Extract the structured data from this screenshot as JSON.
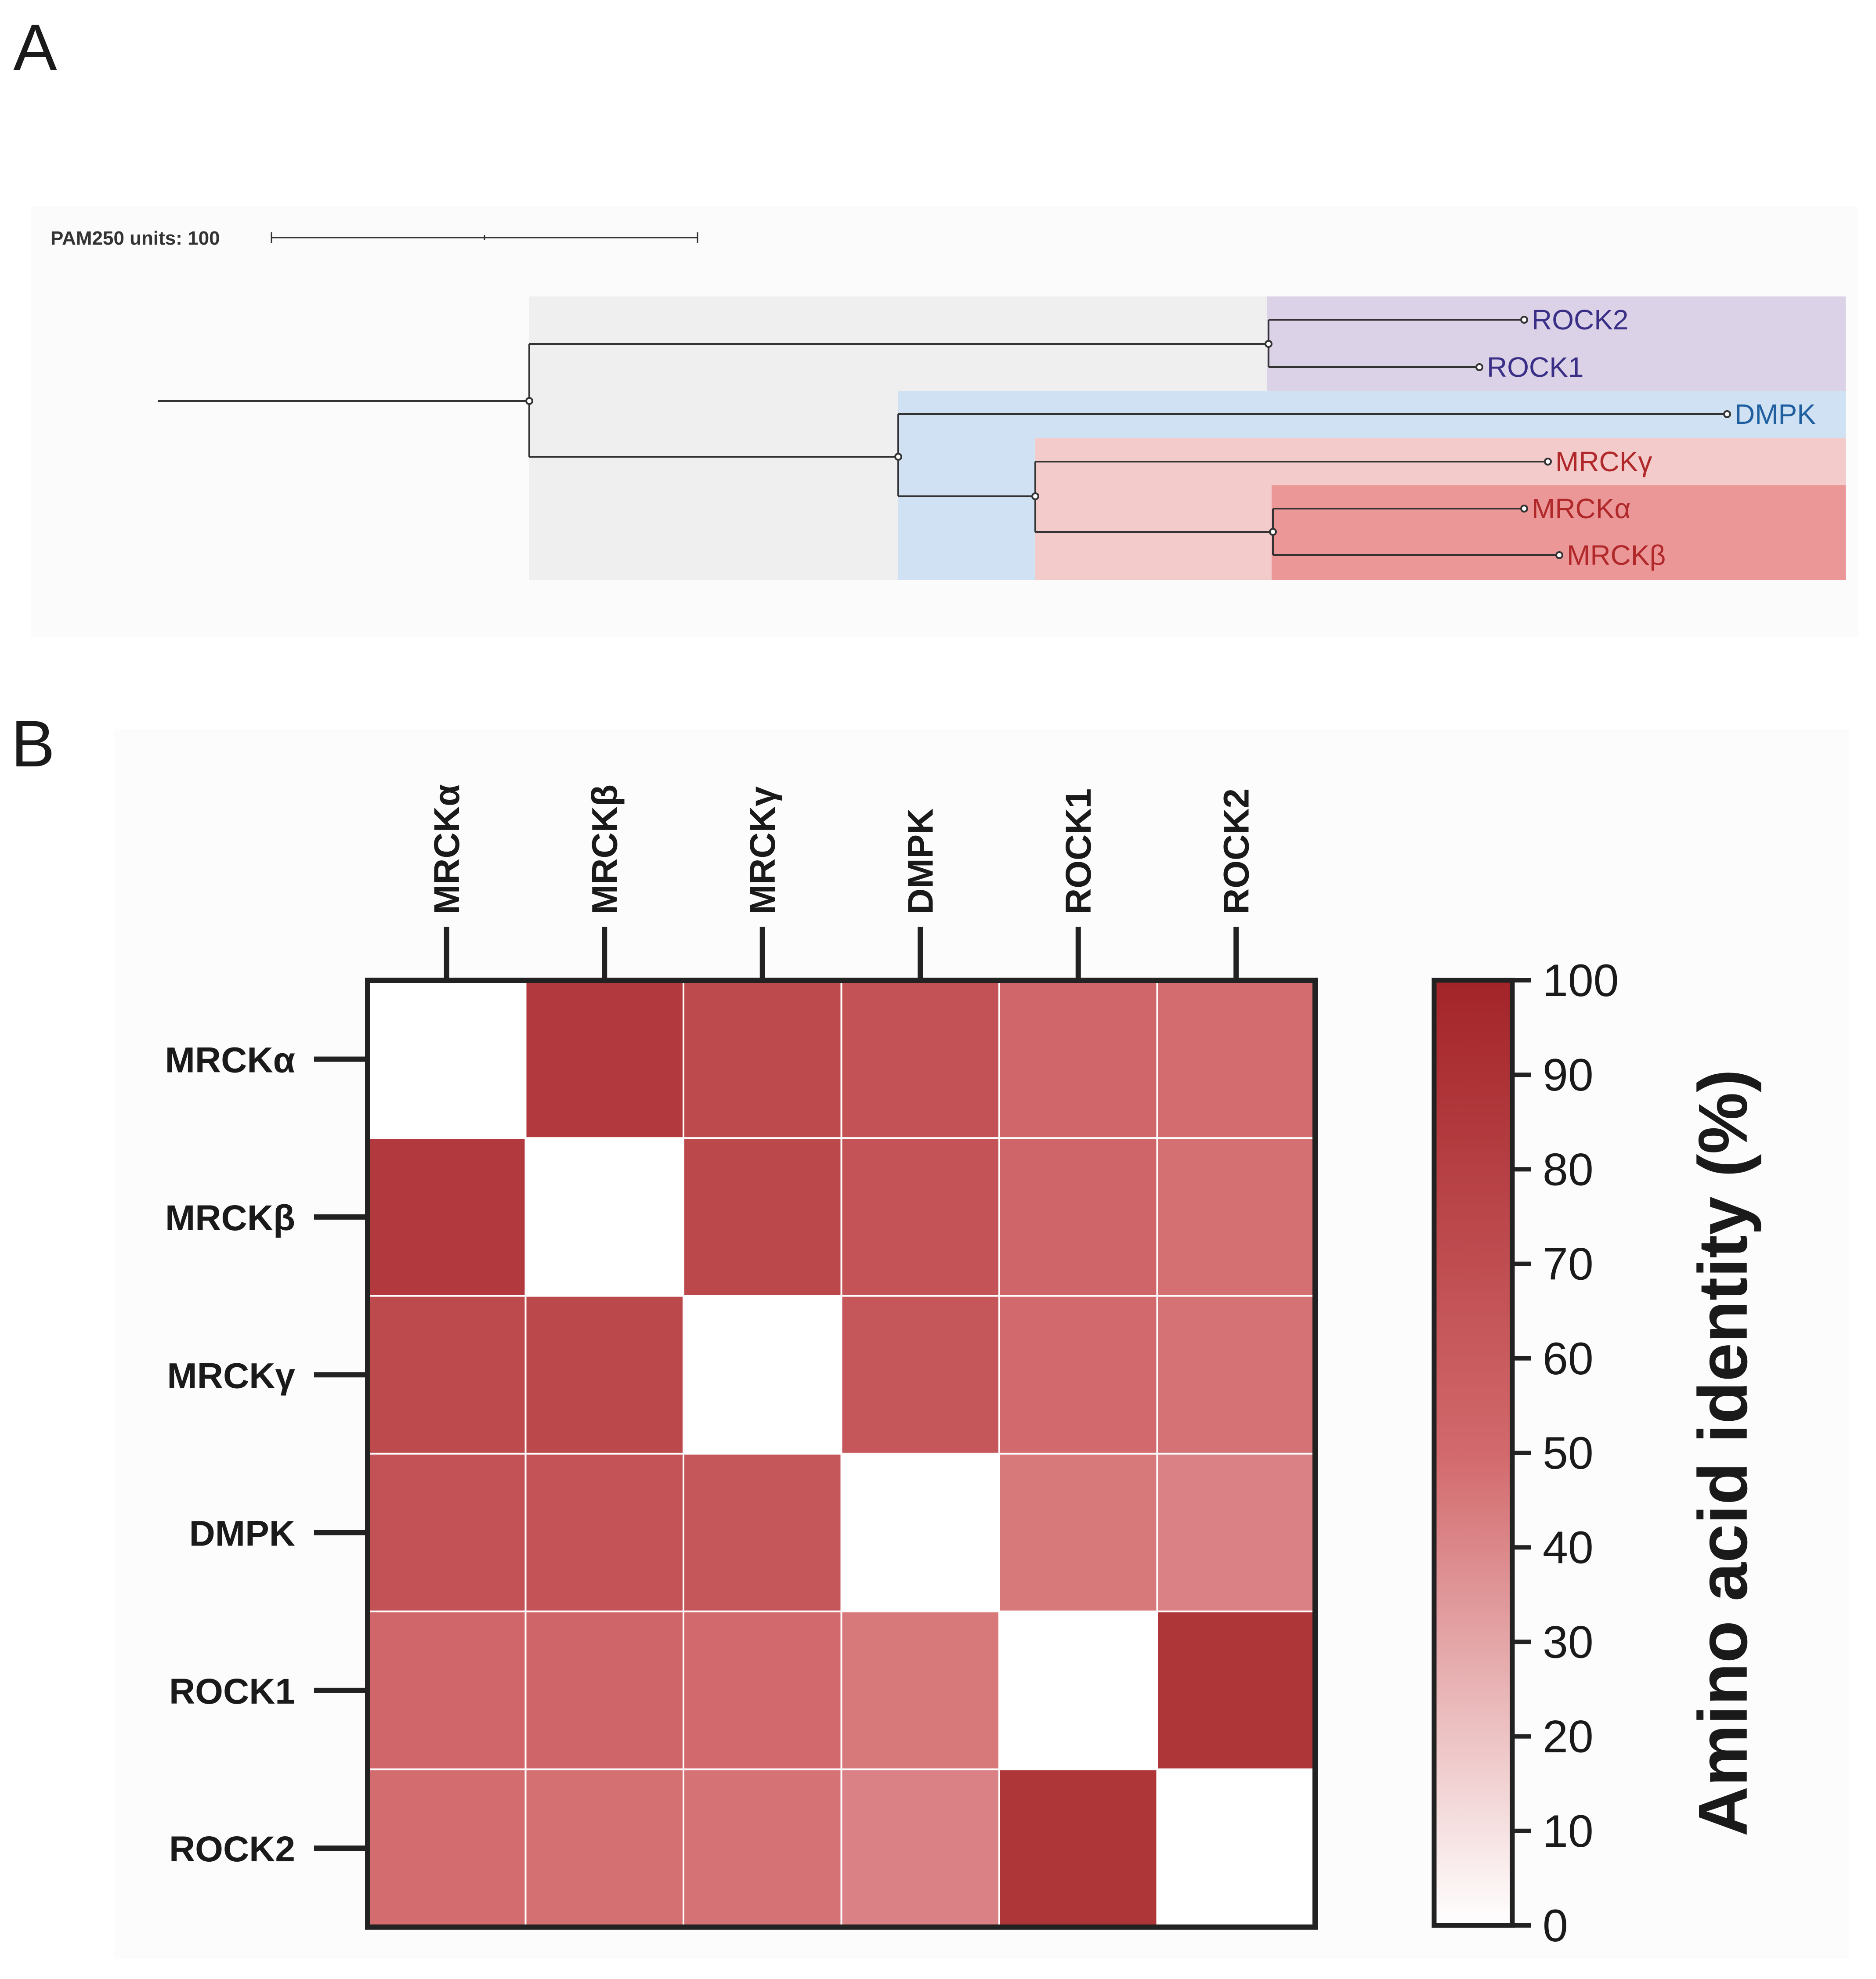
{
  "panel_a": {
    "letter": "A",
    "scale_bar_label": "PAM250 units: 100",
    "leaves": [
      {
        "name": "ROCK2",
        "color": "#3a2f86"
      },
      {
        "name": "ROCK1",
        "color": "#3a2f86"
      },
      {
        "name": "DMPK",
        "color": "#1f5f9f"
      },
      {
        "name": "MRCKγ",
        "color": "#b0282a"
      },
      {
        "name": "MRCKα",
        "color": "#b0282a"
      },
      {
        "name": "MRCKβ",
        "color": "#b0282a"
      }
    ],
    "clade_colors": {
      "all": "#eeefee",
      "rock": "#dcd2e7",
      "dmpk": "#cfe1f2",
      "mrck": "#f4cbcb",
      "mrck_ab": "#ec9797"
    }
  },
  "panel_b": {
    "letter": "B"
  },
  "chart_data": {
    "type": "heatmap",
    "title": "",
    "rows": [
      "MRCKα",
      "MRCKβ",
      "MRCKγ",
      "DMPK",
      "ROCK1",
      "ROCK2"
    ],
    "columns": [
      "MRCKα",
      "MRCKβ",
      "MRCKγ",
      "DMPK",
      "ROCK1",
      "ROCK2"
    ],
    "values": [
      [
        null,
        84,
        72,
        67,
        52,
        49
      ],
      [
        84,
        null,
        74,
        66,
        53,
        48
      ],
      [
        72,
        74,
        null,
        64,
        50,
        47
      ],
      [
        67,
        66,
        64,
        null,
        45,
        42
      ],
      [
        52,
        53,
        50,
        45,
        null,
        88
      ],
      [
        49,
        48,
        47,
        42,
        88,
        null
      ]
    ],
    "colorbar": {
      "label": "Amino acid identity (%)",
      "range": [
        0,
        100
      ],
      "ticks": [
        0,
        10,
        20,
        30,
        40,
        50,
        60,
        70,
        80,
        90,
        100
      ],
      "color_low": "#ffffff",
      "color_high": "#a32428"
    }
  }
}
